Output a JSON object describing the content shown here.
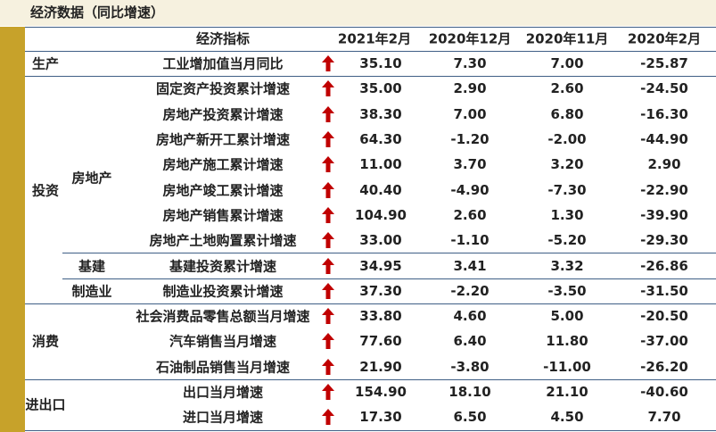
{
  "header": {
    "title": "经济数据（同比增速）"
  },
  "table": {
    "columns": [
      "经济指标",
      "2021年2月",
      "2020年12月",
      "2020年11月",
      "2020年2月"
    ],
    "sections": [
      {
        "label": "生产",
        "rows": [
          {
            "indicator": "工业增加值当月同比",
            "values": [
              "35.10",
              "7.30",
              "7.00",
              "-25.87"
            ]
          }
        ]
      },
      {
        "label": "投资",
        "rows": [
          {
            "indicator": "固定资产投资累计增速",
            "values": [
              "35.00",
              "2.90",
              "2.60",
              "-24.50"
            ]
          }
        ],
        "subgroups": [
          {
            "label": "房地产",
            "rows": [
              {
                "indicator": "房地产投资累计增速",
                "values": [
                  "38.30",
                  "7.00",
                  "6.80",
                  "-16.30"
                ]
              },
              {
                "indicator": "房地产新开工累计增速",
                "values": [
                  "64.30",
                  "-1.20",
                  "-2.00",
                  "-44.90"
                ]
              },
              {
                "indicator": "房地产施工累计增速",
                "values": [
                  "11.00",
                  "3.70",
                  "3.20",
                  "2.90"
                ]
              },
              {
                "indicator": "房地产竣工累计增速",
                "values": [
                  "40.40",
                  "-4.90",
                  "-7.30",
                  "-22.90"
                ]
              },
              {
                "indicator": "房地产销售累计增速",
                "values": [
                  "104.90",
                  "2.60",
                  "1.30",
                  "-39.90"
                ]
              },
              {
                "indicator": "房地产土地购置累计增速",
                "values": [
                  "33.00",
                  "-1.10",
                  "-5.20",
                  "-29.30"
                ]
              }
            ]
          },
          {
            "label": "基建",
            "rows": [
              {
                "indicator": "基建投资累计增速",
                "values": [
                  "34.95",
                  "3.41",
                  "3.32",
                  "-26.86"
                ]
              }
            ]
          },
          {
            "label": "制造业",
            "rows": [
              {
                "indicator": "制造业投资累计增速",
                "values": [
                  "37.30",
                  "-2.20",
                  "-3.50",
                  "-31.50"
                ]
              }
            ]
          }
        ]
      },
      {
        "label": "消费",
        "rows": [
          {
            "indicator": "社会消费品零售总额当月增速",
            "values": [
              "33.80",
              "4.60",
              "5.00",
              "-20.50"
            ]
          },
          {
            "indicator": "汽车销售当月增速",
            "values": [
              "77.60",
              "6.40",
              "11.80",
              "-37.00"
            ]
          },
          {
            "indicator": "石油制品销售当月增速",
            "values": [
              "21.90",
              "-3.80",
              "-11.00",
              "-26.20"
            ]
          }
        ]
      },
      {
        "label": "进出口",
        "rows": [
          {
            "indicator": "出口当月增速",
            "values": [
              "154.90",
              "18.10",
              "21.10",
              "-40.60"
            ]
          },
          {
            "indicator": "进口当月增速",
            "values": [
              "17.30",
              "6.50",
              "4.50",
              "7.70"
            ]
          }
        ]
      }
    ]
  }
}
